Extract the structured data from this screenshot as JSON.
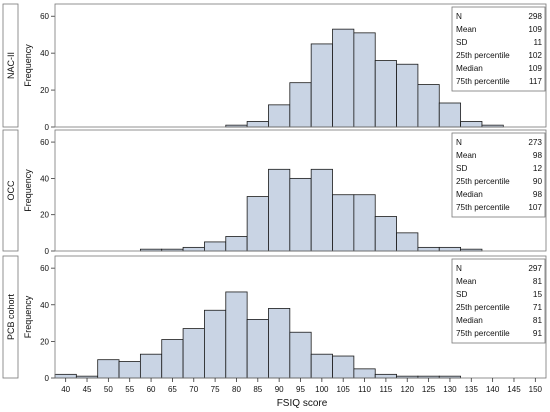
{
  "chart_data": {
    "type": "bar",
    "xlabel": "FSIQ score",
    "ylabel": "Frequency",
    "x_ticks": [
      40,
      45,
      50,
      55,
      60,
      65,
      70,
      75,
      80,
      85,
      90,
      95,
      100,
      105,
      110,
      115,
      120,
      125,
      130,
      135,
      140,
      145,
      150
    ],
    "xlim": [
      37.5,
      152.5
    ],
    "bin_width": 5,
    "grid": false,
    "bar_color": "#c9d4e4",
    "bar_stroke": "#1a1a1a",
    "panels": [
      {
        "name": "NAC-II",
        "ylim": [
          0,
          65
        ],
        "y_ticks": [
          0,
          20,
          40,
          60
        ],
        "bins": [
          {
            "center": 80,
            "value": 1
          },
          {
            "center": 85,
            "value": 3
          },
          {
            "center": 90,
            "value": 12
          },
          {
            "center": 95,
            "value": 24
          },
          {
            "center": 100,
            "value": 45
          },
          {
            "center": 105,
            "value": 53
          },
          {
            "center": 110,
            "value": 51
          },
          {
            "center": 115,
            "value": 36
          },
          {
            "center": 120,
            "value": 34
          },
          {
            "center": 125,
            "value": 23
          },
          {
            "center": 130,
            "value": 13
          },
          {
            "center": 135,
            "value": 3
          },
          {
            "center": 140,
            "value": 1
          }
        ],
        "stats": [
          {
            "label": "N",
            "value": "298"
          },
          {
            "label": "Mean",
            "value": "109"
          },
          {
            "label": "SD",
            "value": "11"
          },
          {
            "label": "25th percentile",
            "value": "102"
          },
          {
            "label": "Median",
            "value": "109"
          },
          {
            "label": "75th percentile",
            "value": "117"
          }
        ]
      },
      {
        "name": "OCC",
        "ylim": [
          0,
          65
        ],
        "y_ticks": [
          0,
          20,
          40,
          60
        ],
        "bins": [
          {
            "center": 60,
            "value": 1
          },
          {
            "center": 65,
            "value": 1
          },
          {
            "center": 70,
            "value": 2
          },
          {
            "center": 75,
            "value": 5
          },
          {
            "center": 80,
            "value": 8
          },
          {
            "center": 85,
            "value": 30
          },
          {
            "center": 90,
            "value": 45
          },
          {
            "center": 95,
            "value": 40
          },
          {
            "center": 100,
            "value": 45
          },
          {
            "center": 105,
            "value": 31
          },
          {
            "center": 110,
            "value": 31
          },
          {
            "center": 115,
            "value": 19
          },
          {
            "center": 120,
            "value": 10
          },
          {
            "center": 125,
            "value": 2
          },
          {
            "center": 130,
            "value": 2
          },
          {
            "center": 135,
            "value": 1
          }
        ],
        "stats": [
          {
            "label": "N",
            "value": "273"
          },
          {
            "label": "Mean",
            "value": "98"
          },
          {
            "label": "SD",
            "value": "12"
          },
          {
            "label": "25th percentile",
            "value": "90"
          },
          {
            "label": "Median",
            "value": "98"
          },
          {
            "label": "75th percentile",
            "value": "107"
          }
        ]
      },
      {
        "name": "PCB cohort",
        "ylim": [
          0,
          65
        ],
        "y_ticks": [
          0,
          20,
          40,
          60
        ],
        "bins": [
          {
            "center": 40,
            "value": 2
          },
          {
            "center": 45,
            "value": 1
          },
          {
            "center": 50,
            "value": 10
          },
          {
            "center": 55,
            "value": 9
          },
          {
            "center": 60,
            "value": 13
          },
          {
            "center": 65,
            "value": 21
          },
          {
            "center": 70,
            "value": 27
          },
          {
            "center": 75,
            "value": 37
          },
          {
            "center": 80,
            "value": 47
          },
          {
            "center": 85,
            "value": 32
          },
          {
            "center": 90,
            "value": 38
          },
          {
            "center": 95,
            "value": 25
          },
          {
            "center": 100,
            "value": 13
          },
          {
            "center": 105,
            "value": 12
          },
          {
            "center": 110,
            "value": 5
          },
          {
            "center": 115,
            "value": 2
          },
          {
            "center": 120,
            "value": 1
          },
          {
            "center": 125,
            "value": 1
          },
          {
            "center": 130,
            "value": 1
          }
        ],
        "stats": [
          {
            "label": "N",
            "value": "297"
          },
          {
            "label": "Mean",
            "value": "81"
          },
          {
            "label": "SD",
            "value": "15"
          },
          {
            "label": "25th percentile",
            "value": "71"
          },
          {
            "label": "Median",
            "value": "81"
          },
          {
            "label": "75th percentile",
            "value": "91"
          }
        ]
      }
    ]
  }
}
